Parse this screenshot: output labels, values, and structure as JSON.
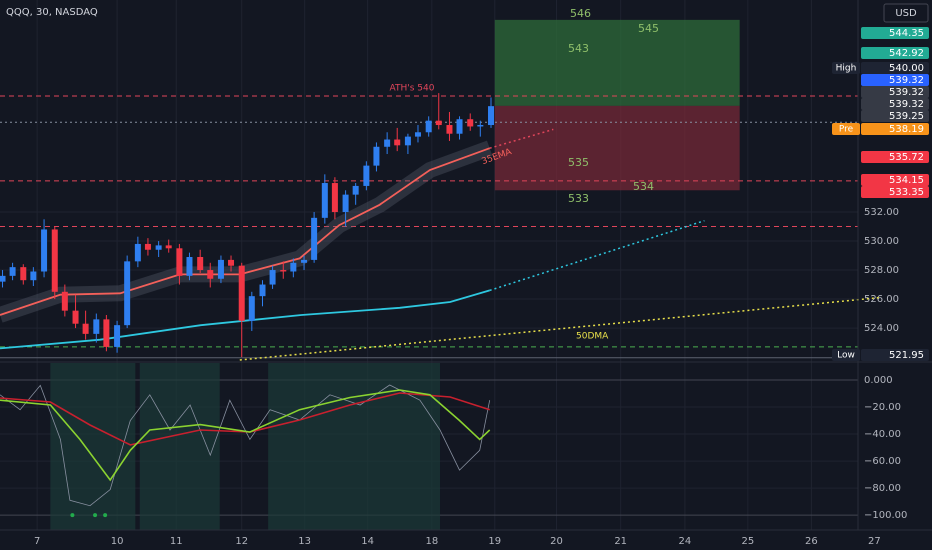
{
  "chart_data": [
    {
      "type": "candlestick",
      "title": "QQQ, 30, NASDAQ",
      "currency": "USD",
      "x": [
        -0.55,
        -0.39,
        -0.22,
        -0.06,
        0.11,
        0.28,
        0.44,
        0.61,
        0.77,
        0.94,
        1.1,
        1.27,
        1.43,
        1.6,
        1.76,
        1.93,
        2.09,
        2.26,
        2.42,
        2.59,
        2.75,
        2.92,
        3.08,
        3.25,
        3.41,
        3.58,
        3.74,
        3.91,
        4.07,
        4.24,
        4.4,
        4.57,
        4.73,
        4.9,
        5.06,
        5.23,
        5.39,
        5.56,
        5.72,
        5.89,
        6.05,
        6.22,
        6.38,
        6.55,
        6.71,
        6.88,
        7.04,
        7.21
      ],
      "open": [
        527.2,
        527.6,
        528.2,
        527.3,
        527.9,
        530.8,
        526.5,
        525.2,
        524.3,
        523.6,
        524.6,
        522.7,
        524.2,
        528.6,
        529.8,
        529.4,
        529.7,
        529.5,
        527.6,
        528.9,
        528.0,
        527.4,
        528.7,
        528.3,
        524.5,
        526.2,
        527.0,
        528.0,
        527.9,
        528.5,
        528.7,
        531.6,
        534.0,
        532.0,
        533.2,
        533.8,
        535.2,
        536.5,
        537.0,
        536.6,
        537.2,
        537.5,
        538.3,
        538.0,
        537.4,
        538.4,
        537.9,
        538.0
      ],
      "high": [
        528.0,
        528.5,
        528.4,
        528.2,
        531.5,
        531.0,
        527.0,
        526.3,
        525.2,
        525.0,
        524.9,
        524.5,
        529.0,
        530.3,
        530.2,
        530.0,
        530.1,
        529.8,
        529.2,
        529.4,
        528.5,
        529.0,
        529.0,
        528.5,
        526.5,
        527.3,
        528.3,
        528.6,
        528.8,
        529.0,
        532.0,
        534.6,
        534.4,
        533.5,
        534.0,
        535.5,
        536.8,
        537.5,
        537.8,
        537.4,
        538.0,
        538.6,
        540.2,
        538.9,
        538.6,
        538.8,
        538.3,
        539.9
      ],
      "low": [
        526.8,
        527.3,
        527.0,
        526.9,
        527.5,
        526.0,
        524.8,
        524.0,
        523.2,
        523.0,
        522.4,
        522.3,
        524.0,
        528.2,
        529.0,
        528.9,
        529.2,
        527.0,
        527.3,
        527.8,
        526.8,
        527.1,
        527.9,
        522.0,
        523.8,
        525.5,
        526.7,
        527.4,
        527.5,
        528.0,
        528.5,
        531.2,
        531.5,
        531.0,
        532.5,
        533.5,
        534.8,
        536.0,
        536.2,
        536.0,
        536.8,
        537.2,
        537.7,
        536.9,
        537.0,
        537.6,
        537.2,
        537.8
      ],
      "close": [
        527.6,
        528.2,
        527.3,
        527.9,
        530.8,
        526.5,
        525.2,
        524.3,
        523.6,
        524.6,
        522.7,
        524.2,
        528.6,
        529.8,
        529.4,
        529.7,
        529.5,
        527.6,
        528.9,
        528.0,
        527.4,
        528.7,
        528.3,
        524.5,
        526.2,
        527.0,
        528.0,
        527.9,
        528.5,
        528.7,
        531.6,
        534.0,
        532.0,
        533.2,
        533.8,
        535.2,
        536.5,
        537.0,
        536.6,
        537.2,
        537.5,
        538.3,
        538.0,
        537.4,
        538.4,
        537.9,
        538.0,
        539.3
      ],
      "up_color": "#2f7ff0",
      "down_color": "#f23645",
      "xlim": [
        -0.59,
        13.04
      ],
      "xticks": [
        {
          "value": 0,
          "label": "7"
        },
        {
          "value": 1.27,
          "label": "10"
        },
        {
          "value": 2.21,
          "label": "11"
        },
        {
          "value": 3.25,
          "label": "12"
        },
        {
          "value": 4.25,
          "label": "13"
        },
        {
          "value": 5.25,
          "label": "14"
        },
        {
          "value": 6.27,
          "label": "18"
        },
        {
          "value": 7.27,
          "label": "19"
        },
        {
          "value": 8.25,
          "label": "20"
        },
        {
          "value": 9.27,
          "label": "21"
        },
        {
          "value": 10.29,
          "label": "24"
        },
        {
          "value": 11.29,
          "label": "25"
        },
        {
          "value": 12.3,
          "label": "26"
        },
        {
          "value": 13.3,
          "label": "27"
        }
      ],
      "ylim": [
        521.66,
        546.62
      ],
      "yticks": [
        {
          "value": 524,
          "label": "524.00"
        },
        {
          "value": 526,
          "label": "526.00"
        },
        {
          "value": 528,
          "label": "528.00"
        },
        {
          "value": 530,
          "label": "530.00"
        },
        {
          "value": 532,
          "label": "532.00"
        }
      ],
      "grid": true,
      "series": [
        {
          "name": "35EMA",
          "color": "#f4605a",
          "x": [
            -0.59,
            0.37,
            1.32,
            2.27,
            3.22,
            4.17,
            4.8,
            5.44,
            6.24,
            7.19
          ],
          "values": [
            524.9,
            526.3,
            526.4,
            527.7,
            527.7,
            528.8,
            531.1,
            532.5,
            534.9,
            536.4
          ]
        },
        {
          "color": "#2ec8e0",
          "x": [
            -0.59,
            1.0,
            2.6,
            4.2,
            5.76,
            6.56,
            7.19
          ],
          "values": [
            522.6,
            523.2,
            524.2,
            524.9,
            525.4,
            525.8,
            526.6
          ]
        },
        {
          "color": "#e0455a",
          "style": "dotted",
          "x": [
            7.19,
            8.2
          ],
          "values": [
            536.4,
            537.7
          ]
        },
        {
          "color": "#2ec8e0",
          "style": "dotted",
          "x": [
            7.19,
            10.6
          ],
          "values": [
            526.6,
            531.4
          ]
        },
        {
          "name": "50DMA",
          "color": "#e8e04a",
          "style": "dotted",
          "x": [
            3.22,
            13.38
          ],
          "values": [
            521.8,
            526.1
          ]
        }
      ],
      "levels": [
        {
          "value": 540,
          "color": "#e0455a",
          "style": "dashed"
        },
        {
          "value": 538.19,
          "color": "#8890a0",
          "style": "dotted"
        },
        {
          "value": 534.15,
          "color": "#e0455a",
          "style": "dashed"
        },
        {
          "value": 531,
          "color": "#e0455a",
          "style": "dashed"
        },
        {
          "value": 522.7,
          "color": "#4caf50",
          "style": "dashed"
        },
        {
          "value": 521.95,
          "color": "#5d6270",
          "style": "solid"
        }
      ],
      "position": {
        "x": [
          7.27,
          11.16
        ],
        "target": 545.25,
        "entry": 539.32,
        "stop": 533.5
      },
      "box_labels": [
        "546",
        "545",
        "543",
        "535",
        "534",
        "533"
      ],
      "annotations": [
        "ATH's 540"
      ],
      "price_tags": [
        {
          "value": 544.35,
          "color": "#22ab94"
        },
        {
          "value": 542.92,
          "color": "#22ab94"
        },
        {
          "value": 540,
          "label": "540.00",
          "tag": "High",
          "color": "#1e2433"
        },
        {
          "value": 539.32,
          "color": "#2962ff"
        },
        {
          "value": 539.32,
          "color": "#363a45"
        },
        {
          "value": 539.32,
          "color": "#363a45"
        },
        {
          "value": 539.25,
          "color": "#363a45"
        },
        {
          "value": 538.19,
          "tag": "Pre",
          "color": "#f7931a"
        },
        {
          "value": 535.72,
          "color": "#f23645"
        },
        {
          "value": 534.15,
          "color": "#f23645"
        },
        {
          "value": 533.35,
          "color": "#f23645"
        },
        {
          "value": 521.95,
          "tag": "Low",
          "color": "#1e2433"
        }
      ]
    },
    {
      "type": "line",
      "ylim": [
        -111,
        13.3
      ],
      "yticks": [
        {
          "value": 0,
          "label": "0.000"
        },
        {
          "value": -20,
          "label": "−20.00"
        },
        {
          "value": -40,
          "label": "−40.00"
        },
        {
          "value": -60,
          "label": "−60.00"
        },
        {
          "value": -80,
          "label": "−80.00"
        },
        {
          "value": -100,
          "label": "−100.00"
        }
      ],
      "regions": [
        [
          0.21,
          1.56
        ],
        [
          1.63,
          2.9
        ],
        [
          3.67,
          6.4
        ]
      ],
      "markers": {
        "x": [
          0.56,
          0.92,
          1.08
        ],
        "values": [
          -100,
          -100,
          -100
        ],
        "color": "#22ab4c"
      },
      "series": [
        {
          "color": "#8890a0",
          "x": [
            -0.59,
            -0.27,
            0.05,
            0.37,
            0.52,
            0.84,
            1.16,
            1.48,
            1.79,
            2.11,
            2.43,
            2.75,
            3.06,
            3.38,
            3.7,
            4.17,
            4.65,
            5.13,
            5.6,
            6.08,
            6.4,
            6.71,
            7.03,
            7.19
          ],
          "values": [
            -11,
            -22,
            -4,
            -44,
            -89,
            -93,
            -81,
            -30,
            -11,
            -37,
            -18.5,
            -55.6,
            -15,
            -44,
            -22,
            -29.6,
            -11,
            -18.5,
            -3.7,
            -15,
            -37,
            -66.7,
            -52,
            -15
          ]
        },
        {
          "color": "#c8202e",
          "x": [
            -0.59,
            0.21,
            0.84,
            1.48,
            2.59,
            3.38,
            4.17,
            4.97,
            5.76,
            6.56,
            7.19
          ],
          "values": [
            -13.3,
            -16.3,
            -33.3,
            -48,
            -37,
            -38.5,
            -29.6,
            -18.5,
            -9.6,
            -12.6,
            -22
          ]
        },
        {
          "color": "#8bd330",
          "x": [
            -0.59,
            0.21,
            0.68,
            1.16,
            1.48,
            1.79,
            2.59,
            3.38,
            4.17,
            4.97,
            5.76,
            6.24,
            6.71,
            7.03,
            7.19
          ],
          "values": [
            -15,
            -18.5,
            -44,
            -74,
            -52,
            -37,
            -33,
            -38.5,
            -22,
            -13,
            -7.4,
            -11,
            -30,
            -44,
            -37
          ]
        }
      ]
    }
  ]
}
